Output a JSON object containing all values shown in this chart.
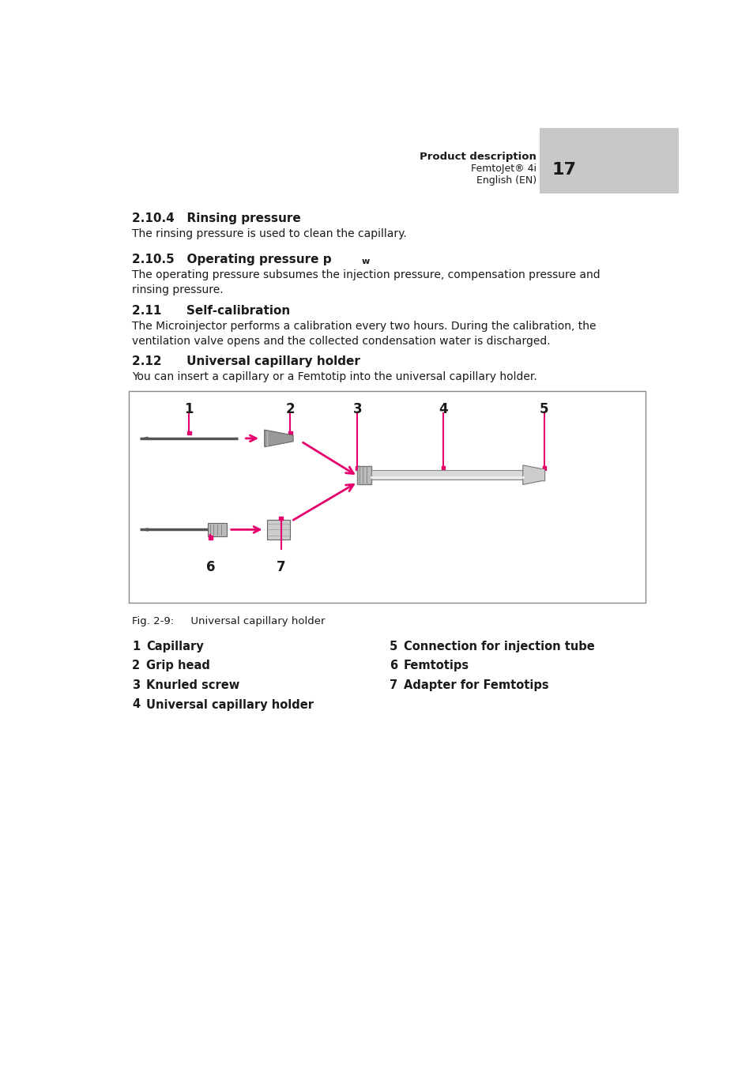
{
  "header_text": "Product description",
  "header_sub1": "FemtoJet® 4i",
  "header_page": "17",
  "header_sub2": "English (EN)",
  "section1_heading": "2.10.4   Rinsing pressure",
  "section1_body": "The rinsing pressure is used to clean the capillary.",
  "section2_body": "The operating pressure subsumes the injection pressure, compensation pressure and\nrinsing pressure.",
  "section3_heading": "2.11      Self-calibration",
  "section3_body": "The Microinjector performs a calibration every two hours. During the calibration, the\nventilation valve opens and the collected condensation water is discharged.",
  "section4_heading": "2.12      Universal capillary holder",
  "section4_body": "You can insert a capillary or a Femtotip into the universal capillary holder.",
  "fig_caption": "Fig. 2-9:     Universal capillary holder",
  "legend_left": [
    [
      "1",
      "Capillary"
    ],
    [
      "2",
      "Grip head"
    ],
    [
      "3",
      "Knurled screw"
    ],
    [
      "4",
      "Universal capillary holder"
    ]
  ],
  "legend_right": [
    [
      "5",
      "Connection for injection tube"
    ],
    [
      "6",
      "Femtotips"
    ],
    [
      "7",
      "Adapter for Femtotips"
    ]
  ],
  "pink": "#E5006D",
  "dark": "#1a1a1a",
  "gray_header": "#C8C8C8",
  "bg": "#FFFFFF"
}
